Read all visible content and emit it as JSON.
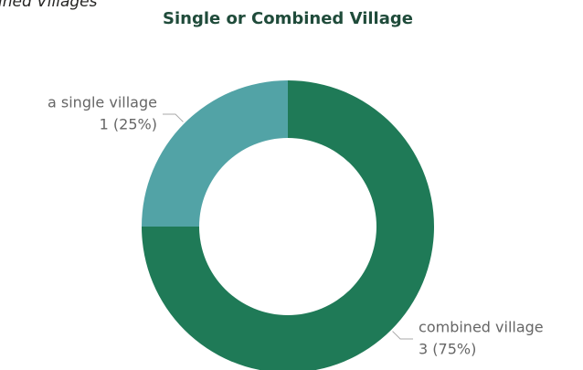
{
  "chart_data": {
    "type": "donut",
    "title": "Single or Combined Village",
    "annotation": "ined Villages",
    "categories": [
      "combined village",
      "a single village"
    ],
    "values": [
      3,
      1
    ],
    "value_labels": [
      "3 (75%)",
      "1 (25%)"
    ],
    "colors": [
      "#1f7a57",
      "#52a3a6"
    ]
  }
}
